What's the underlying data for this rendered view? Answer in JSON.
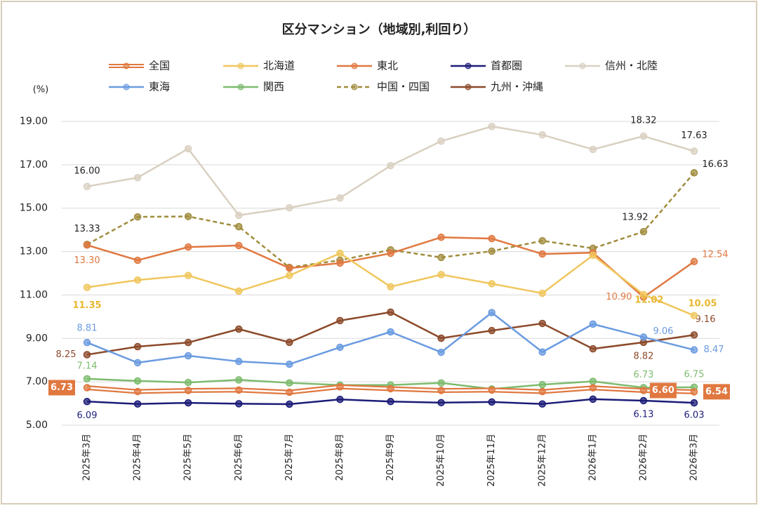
{
  "chart_data": {
    "type": "line",
    "title": "区分マンション（地域別,利回り）",
    "y_label": "(%)",
    "categories": [
      "2025年3月",
      "2025年4月",
      "2025年5月",
      "2025年6月",
      "2025年7月",
      "2025年8月",
      "2025年9月",
      "2025年10月",
      "2025年11月",
      "2025年12月",
      "2026年1月",
      "2026年2月",
      "2026年3月"
    ],
    "ylim": [
      5,
      19
    ],
    "yticks": [
      {
        "value": 5,
        "label": "5.00"
      },
      {
        "value": 7,
        "label": "7.00"
      },
      {
        "value": 9,
        "label": "9.00"
      },
      {
        "value": 11,
        "label": "11.00"
      },
      {
        "value": 13,
        "label": "13.00"
      },
      {
        "value": 15,
        "label": "15.00"
      },
      {
        "value": 17,
        "label": "17.00"
      },
      {
        "value": 19,
        "label": "19.00"
      }
    ],
    "grid": true,
    "series": [
      {
        "name": "全国",
        "color": "#e07840",
        "style": "double",
        "values": [
          6.73,
          6.55,
          6.6,
          6.62,
          6.52,
          6.77,
          6.68,
          6.6,
          6.62,
          6.55,
          6.72,
          6.6,
          6.54
        ],
        "value_labels": [
          "6.73",
          null,
          null,
          null,
          null,
          null,
          null,
          null,
          null,
          null,
          null,
          "6.60",
          "6.54"
        ]
      },
      {
        "name": "北海道",
        "color": "#f0c75e",
        "values": [
          11.35,
          11.69,
          11.9,
          11.18,
          11.9,
          12.92,
          11.38,
          11.94,
          11.52,
          11.08,
          12.83,
          11.02,
          10.05
        ],
        "value_labels": [
          "11.35",
          null,
          null,
          null,
          null,
          null,
          null,
          null,
          null,
          null,
          null,
          "11.02",
          "10.05"
        ]
      },
      {
        "name": "東北",
        "color": "#e07840",
        "values": [
          13.3,
          12.6,
          13.21,
          13.28,
          12.24,
          12.47,
          12.92,
          13.66,
          13.6,
          12.89,
          12.95,
          10.9,
          12.54
        ],
        "value_labels": [
          "13.30",
          null,
          null,
          null,
          null,
          null,
          null,
          null,
          null,
          null,
          null,
          "10.90",
          "12.54"
        ]
      },
      {
        "name": "首都圏",
        "color": "#1c1c78",
        "values": [
          6.09,
          5.98,
          6.03,
          5.99,
          5.97,
          6.19,
          6.09,
          6.04,
          6.07,
          5.98,
          6.2,
          6.13,
          6.03
        ],
        "value_labels": [
          "6.09",
          null,
          null,
          null,
          null,
          null,
          null,
          null,
          null,
          null,
          null,
          "6.13",
          "6.03"
        ]
      },
      {
        "name": "信州・北陸",
        "color": "#d9d0c1",
        "values": [
          16.0,
          16.41,
          17.74,
          14.67,
          15.02,
          15.47,
          16.96,
          18.09,
          18.77,
          18.38,
          17.71,
          18.32,
          17.63
        ],
        "value_labels": [
          "16.00",
          null,
          null,
          null,
          null,
          null,
          null,
          null,
          null,
          null,
          null,
          "18.32",
          "17.63"
        ]
      },
      {
        "name": "東海",
        "color": "#6a9be0",
        "values": [
          8.81,
          7.88,
          8.2,
          7.94,
          7.81,
          8.59,
          9.3,
          8.36,
          10.19,
          8.37,
          9.66,
          9.06,
          8.47
        ],
        "value_labels": [
          "8.81",
          null,
          null,
          null,
          null,
          null,
          null,
          null,
          null,
          null,
          null,
          "9.06",
          "8.47"
        ]
      },
      {
        "name": "関西",
        "color": "#7dbb6e",
        "values": [
          7.14,
          7.04,
          6.97,
          7.09,
          6.95,
          6.85,
          6.85,
          6.95,
          6.67,
          6.87,
          7.02,
          6.73,
          6.75
        ],
        "value_labels": [
          "7.14",
          null,
          null,
          null,
          null,
          null,
          null,
          null,
          null,
          null,
          null,
          "6.73",
          "6.75"
        ]
      },
      {
        "name": "中国・四国",
        "color": "#a08c3c",
        "style": "dashed",
        "values": [
          13.33,
          14.6,
          14.62,
          14.15,
          12.27,
          12.6,
          13.08,
          12.73,
          13.02,
          13.5,
          13.15,
          13.92,
          16.63
        ],
        "value_labels": [
          "13.33",
          null,
          null,
          null,
          null,
          null,
          null,
          null,
          null,
          null,
          null,
          "13.92",
          "16.63"
        ]
      },
      {
        "name": "九州・沖縄",
        "color": "#8c4a2a",
        "values": [
          8.25,
          8.62,
          8.81,
          9.43,
          8.82,
          9.82,
          10.21,
          9.01,
          9.36,
          9.69,
          8.52,
          8.82,
          9.16
        ],
        "value_labels": [
          "8.25",
          null,
          null,
          null,
          null,
          null,
          null,
          null,
          null,
          null,
          null,
          "8.82",
          "9.16"
        ]
      }
    ]
  }
}
